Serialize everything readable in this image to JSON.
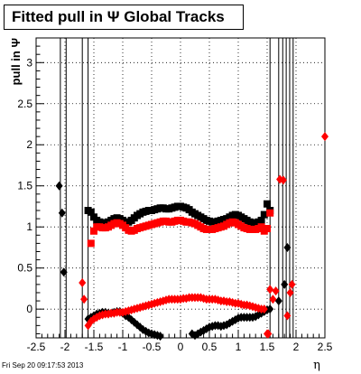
{
  "title": "Fitted pull in Ψ   Global Tracks",
  "footer": "Fri Sep 20 09:17:53 2013",
  "chart_data": {
    "type": "scatter",
    "title": "Fitted pull in Ψ   Global Tracks",
    "xlabel": "η",
    "ylabel": "pull in Ψ",
    "xlim": [
      -2.5,
      2.5
    ],
    "ylim": [
      -0.35,
      3.3
    ],
    "x_ticks": [
      "-2.5",
      "-2",
      "-1.5",
      "-1",
      "-0.5",
      "0",
      "0.5",
      "1",
      "1.5",
      "2",
      "2.5"
    ],
    "y_ticks": [
      "0",
      "0.5",
      "1",
      "1.5",
      "2",
      "2.5",
      "3"
    ],
    "grid": true,
    "vertical_error_lines_x": [
      -2.08,
      -1.98,
      -1.7,
      -1.6,
      1.55,
      1.7,
      1.77,
      1.83,
      1.89,
      1.95
    ],
    "series": [
      {
        "color": "#000000",
        "marker": "square",
        "x": [
          -1.6,
          -1.55,
          -1.5,
          -1.45,
          -1.4,
          -1.35,
          -1.3,
          -1.25,
          -1.2,
          -1.15,
          -1.1,
          -1.05,
          -1.0,
          -0.95,
          -0.9,
          -0.85,
          -0.8,
          -0.75,
          -0.7,
          -0.65,
          -0.6,
          -0.55,
          -0.5,
          -0.45,
          -0.4,
          -0.35,
          -0.3,
          -0.25,
          -0.2,
          -0.15,
          -0.1,
          -0.05,
          0.0,
          0.05,
          0.1,
          0.15,
          0.2,
          0.25,
          0.3,
          0.35,
          0.4,
          0.45,
          0.5,
          0.55,
          0.6,
          0.65,
          0.7,
          0.75,
          0.8,
          0.85,
          0.9,
          0.95,
          1.0,
          1.05,
          1.1,
          1.15,
          1.2,
          1.25,
          1.3,
          1.35,
          1.4,
          1.45,
          1.5,
          1.55
        ],
        "y": [
          1.2,
          1.18,
          1.12,
          1.08,
          1.06,
          1.05,
          1.05,
          1.06,
          1.08,
          1.1,
          1.11,
          1.1,
          1.08,
          1.06,
          1.06,
          1.08,
          1.11,
          1.14,
          1.16,
          1.18,
          1.19,
          1.2,
          1.2,
          1.21,
          1.22,
          1.23,
          1.23,
          1.22,
          1.22,
          1.23,
          1.24,
          1.25,
          1.25,
          1.24,
          1.23,
          1.21,
          1.18,
          1.16,
          1.14,
          1.12,
          1.1,
          1.08,
          1.07,
          1.06,
          1.06,
          1.07,
          1.08,
          1.09,
          1.1,
          1.12,
          1.14,
          1.15,
          1.14,
          1.12,
          1.1,
          1.08,
          1.06,
          1.05,
          1.05,
          1.06,
          1.08,
          1.15,
          1.28,
          1.2
        ]
      },
      {
        "color": "#000000",
        "marker": "diamond",
        "x": [
          -2.1,
          -2.05,
          -2.02,
          -1.6,
          -1.55,
          -1.5,
          -1.45,
          -1.4,
          -1.35,
          -1.3,
          -1.25,
          -1.2,
          -1.15,
          -1.1,
          -1.05,
          -1.0,
          -0.95,
          -0.9,
          -0.85,
          -0.8,
          -0.75,
          -0.7,
          -0.65,
          -0.6,
          -0.55,
          -0.5,
          -0.45,
          -0.4,
          -0.35,
          0.2,
          0.25,
          0.3,
          0.35,
          0.4,
          0.45,
          0.5,
          0.55,
          0.6,
          0.65,
          0.7,
          0.75,
          0.8,
          0.85,
          0.9,
          0.95,
          1.0,
          1.05,
          1.1,
          1.15,
          1.2,
          1.25,
          1.3,
          1.35,
          1.4,
          1.45,
          1.5,
          1.55,
          1.7,
          1.8,
          1.85
        ],
        "y": [
          1.5,
          1.17,
          0.45,
          -0.12,
          -0.1,
          -0.08,
          -0.06,
          -0.05,
          -0.04,
          -0.04,
          -0.05,
          -0.05,
          -0.04,
          -0.03,
          -0.03,
          -0.05,
          -0.08,
          -0.1,
          -0.13,
          -0.16,
          -0.19,
          -0.22,
          -0.25,
          -0.27,
          -0.29,
          -0.3,
          -0.31,
          -0.32,
          -0.33,
          -0.3,
          -0.32,
          -0.3,
          -0.28,
          -0.26,
          -0.24,
          -0.22,
          -0.21,
          -0.2,
          -0.2,
          -0.21,
          -0.2,
          -0.19,
          -0.17,
          -0.15,
          -0.13,
          -0.11,
          -0.1,
          -0.1,
          -0.1,
          -0.1,
          -0.1,
          -0.09,
          -0.07,
          -0.05,
          -0.03,
          -0.01,
          0.0,
          0.1,
          0.3,
          0.75
        ]
      },
      {
        "color": "#ff0000",
        "marker": "square",
        "x": [
          -1.55,
          -1.5,
          -1.45,
          -1.4,
          -1.35,
          -1.3,
          -1.25,
          -1.2,
          -1.15,
          -1.1,
          -1.05,
          -1.0,
          -0.95,
          -0.9,
          -0.85,
          -0.8,
          -0.75,
          -0.7,
          -0.65,
          -0.6,
          -0.55,
          -0.5,
          -0.45,
          -0.4,
          -0.35,
          -0.3,
          -0.25,
          -0.2,
          -0.15,
          -0.1,
          -0.05,
          0.0,
          0.05,
          0.1,
          0.15,
          0.2,
          0.25,
          0.3,
          0.35,
          0.4,
          0.45,
          0.5,
          0.55,
          0.6,
          0.65,
          0.7,
          0.75,
          0.8,
          0.85,
          0.9,
          0.95,
          1.0,
          1.05,
          1.1,
          1.15,
          1.2,
          1.25,
          1.3,
          1.35,
          1.4,
          1.45,
          1.5,
          1.55
        ],
        "y": [
          0.8,
          0.95,
          1.0,
          1.0,
          0.99,
          0.99,
          1.0,
          1.02,
          1.04,
          1.05,
          1.04,
          1.02,
          0.99,
          0.96,
          0.95,
          0.96,
          0.98,
          0.99,
          1.0,
          1.01,
          1.02,
          1.03,
          1.04,
          1.05,
          1.06,
          1.07,
          1.07,
          1.06,
          1.06,
          1.07,
          1.08,
          1.08,
          1.07,
          1.06,
          1.06,
          1.05,
          1.04,
          1.02,
          1.0,
          0.98,
          0.97,
          0.97,
          0.97,
          0.98,
          0.99,
          1.0,
          1.01,
          1.03,
          1.05,
          1.06,
          1.05,
          1.03,
          1.01,
          0.99,
          0.98,
          0.97,
          0.97,
          0.97,
          0.98,
          1.0,
          0.95,
          0.98,
          1.17
        ]
      },
      {
        "color": "#ff0000",
        "marker": "diamond",
        "x": [
          -1.7,
          -1.67,
          -1.6,
          -1.55,
          -1.5,
          -1.45,
          -1.4,
          -1.35,
          -1.3,
          -1.25,
          -1.2,
          -1.15,
          -1.1,
          -1.05,
          -1.0,
          -0.95,
          -0.9,
          -0.85,
          -0.8,
          -0.75,
          -0.7,
          -0.65,
          -0.6,
          -0.55,
          -0.5,
          -0.45,
          -0.4,
          -0.35,
          -0.3,
          -0.25,
          -0.2,
          -0.15,
          -0.1,
          -0.05,
          0.0,
          0.05,
          0.1,
          0.15,
          0.2,
          0.25,
          0.3,
          0.35,
          0.4,
          0.45,
          0.5,
          0.55,
          0.6,
          0.65,
          0.7,
          0.75,
          0.8,
          0.85,
          0.9,
          0.95,
          1.0,
          1.05,
          1.1,
          1.15,
          1.2,
          1.25,
          1.3,
          1.35,
          1.4,
          1.45,
          1.5,
          1.52,
          1.55,
          1.6,
          1.65,
          1.72,
          1.78,
          1.85,
          1.9,
          1.93,
          2.5
        ],
        "y": [
          0.32,
          0.12,
          -0.2,
          -0.15,
          -0.12,
          -0.1,
          -0.08,
          -0.07,
          -0.06,
          -0.06,
          -0.05,
          -0.05,
          -0.04,
          -0.04,
          -0.04,
          -0.03,
          -0.02,
          -0.01,
          0.0,
          0.01,
          0.02,
          0.03,
          0.04,
          0.05,
          0.06,
          0.07,
          0.08,
          0.09,
          0.1,
          0.11,
          0.12,
          0.12,
          0.12,
          0.12,
          0.12,
          0.13,
          0.13,
          0.14,
          0.14,
          0.14,
          0.14,
          0.14,
          0.13,
          0.12,
          0.12,
          0.12,
          0.12,
          0.11,
          0.1,
          0.1,
          0.09,
          0.09,
          0.08,
          0.07,
          0.07,
          0.06,
          0.05,
          0.05,
          0.04,
          0.03,
          0.02,
          0.01,
          0.0,
          0.0,
          -0.3,
          -0.3,
          0.24,
          0.12,
          0.22,
          1.58,
          1.57,
          -0.08,
          0.2,
          0.3,
          2.1
        ]
      }
    ]
  }
}
